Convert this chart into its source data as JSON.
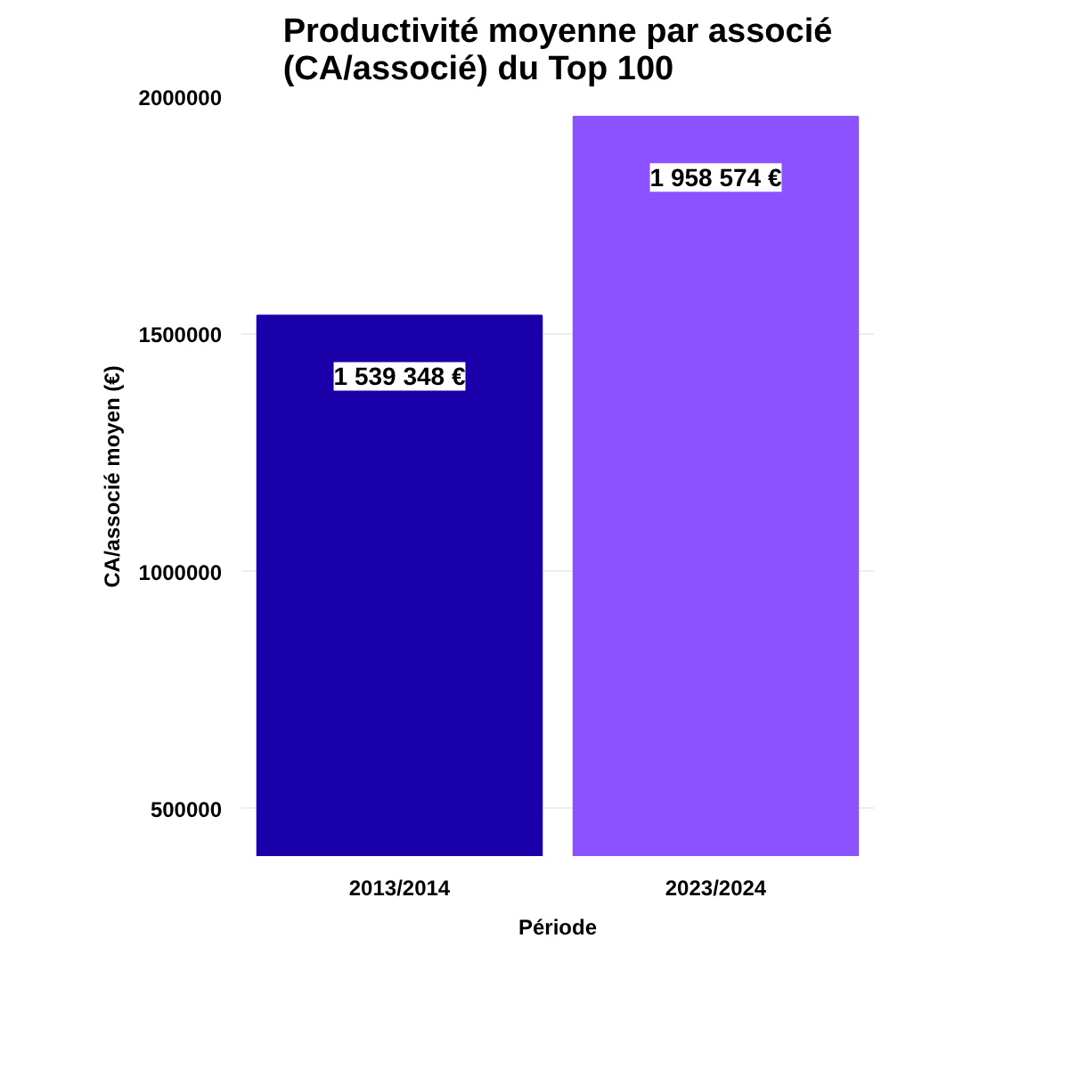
{
  "chart_data": {
    "type": "bar",
    "title": "Productivité moyenne par associé\n(CA/associé) du Top 100",
    "xlabel": "Période",
    "ylabel": "CA/associé moyen (€)",
    "categories": [
      "2013/2014",
      "2023/2024"
    ],
    "values": [
      1539348,
      1958574
    ],
    "colors": [
      "#1a00a8",
      "#8c52ff"
    ],
    "value_labels": [
      "1 539 348 €",
      "1 958 574 €"
    ],
    "ylim": [
      400000,
      2000000
    ],
    "yticks": [
      500000,
      1000000,
      1500000,
      2000000
    ],
    "grid": "y"
  }
}
